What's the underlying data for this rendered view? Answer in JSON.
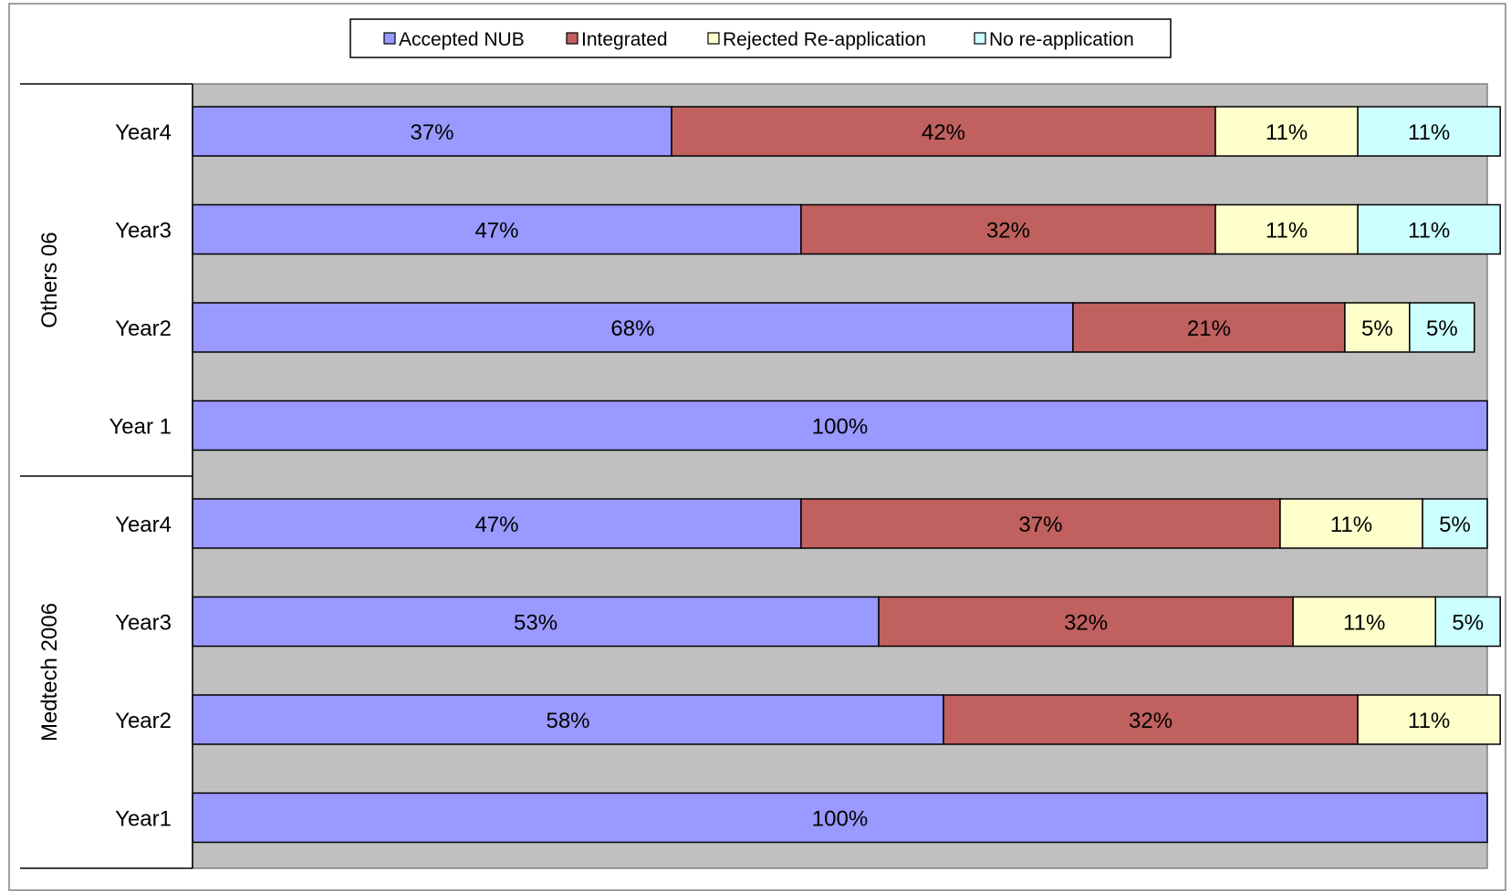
{
  "chart_data": {
    "type": "bar",
    "orientation": "horizontal",
    "stacked": "percent",
    "title": "",
    "xlabel": "",
    "ylabel": "",
    "xlim": [
      0,
      100
    ],
    "legend_position": "top",
    "grid": false,
    "groups": [
      {
        "name": "Others 06",
        "rows": [
          {
            "label": "Year4",
            "values": [
              37,
              42,
              11,
              11
            ]
          },
          {
            "label": "Year3",
            "values": [
              47,
              32,
              11,
              11
            ]
          },
          {
            "label": "Year2",
            "values": [
              68,
              21,
              5,
              5
            ]
          },
          {
            "label": "Year 1",
            "values": [
              100,
              0,
              0,
              0
            ]
          }
        ]
      },
      {
        "name": "Medtech 2006",
        "rows": [
          {
            "label": "Year4",
            "values": [
              47,
              37,
              11,
              5
            ]
          },
          {
            "label": "Year3",
            "values": [
              53,
              32,
              11,
              5
            ]
          },
          {
            "label": "Year2",
            "values": [
              58,
              32,
              11,
              0
            ]
          },
          {
            "label": "Year1",
            "values": [
              100,
              0,
              0,
              0
            ]
          }
        ]
      }
    ],
    "series": [
      {
        "name": "Accepted NUB",
        "color": "#9999FF"
      },
      {
        "name": "Integrated",
        "color": "#C0605F"
      },
      {
        "name": "Rejected Re-application",
        "color": "#FFFFCC"
      },
      {
        "name": "No re-application",
        "color": "#CCFFFF"
      }
    ],
    "plot_background": "#C0C0C0"
  }
}
